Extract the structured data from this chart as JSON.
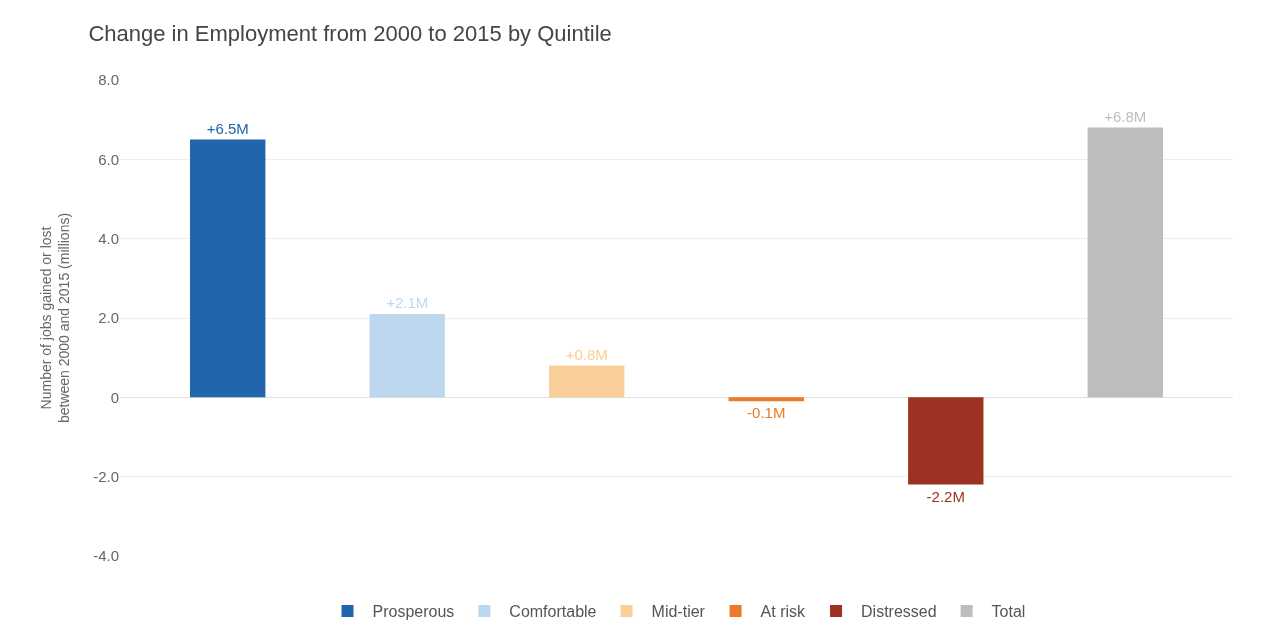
{
  "chart_data": {
    "type": "bar",
    "title": "Change in Employment from 2000 to 2015 by Quintile",
    "ylabel": "Number of jobs gained or lost\nbetween 2000 and 2015 (millions)",
    "categories": [
      null,
      null,
      null,
      null,
      null,
      null
    ],
    "series": [
      {
        "name": "Prosperous",
        "color": "#2166ac",
        "values": [
          6.5,
          null,
          null,
          null,
          null,
          null
        ],
        "value_labels": [
          "+6.5M",
          null,
          null,
          null,
          null,
          null
        ]
      },
      {
        "name": "Comfortable",
        "color": "#bdd7ee",
        "values": [
          null,
          2.1,
          null,
          null,
          null,
          null
        ],
        "value_labels": [
          null,
          "+2.1M",
          null,
          null,
          null,
          null
        ]
      },
      {
        "name": "Mid-tier",
        "color": "#f8cf98",
        "values": [
          null,
          null,
          0.8,
          null,
          null,
          null
        ],
        "value_labels": [
          null,
          null,
          "+0.8M",
          null,
          null,
          null
        ]
      },
      {
        "name": "At risk",
        "color": "#ec7a27",
        "values": [
          null,
          null,
          null,
          -0.1,
          null,
          null
        ],
        "value_labels": [
          null,
          null,
          null,
          "-0.1M",
          null,
          null
        ]
      },
      {
        "name": "Distressed",
        "color": "#9e3222",
        "values": [
          null,
          null,
          null,
          null,
          -2.2,
          null
        ],
        "value_labels": [
          null,
          null,
          null,
          null,
          "-2.2M",
          null
        ]
      },
      {
        "name": "Total",
        "color": "#bdbdbd",
        "values": [
          null,
          null,
          null,
          null,
          null,
          6.8
        ],
        "value_labels": [
          null,
          null,
          null,
          null,
          null,
          "+6.8M"
        ]
      }
    ],
    "ylim": [
      -4,
      8
    ],
    "yticks": [
      {
        "value": -4,
        "label": "-4.0"
      },
      {
        "value": -2,
        "label": "-2.0"
      },
      0,
      {
        "value": 2,
        "label": "2.0"
      },
      {
        "value": 4,
        "label": "4.0"
      },
      {
        "value": 6,
        "label": "6.0"
      },
      {
        "value": 8,
        "label": "8.0"
      }
    ],
    "grid": "y",
    "legend": "bottom",
    "tick_labels": "y"
  }
}
